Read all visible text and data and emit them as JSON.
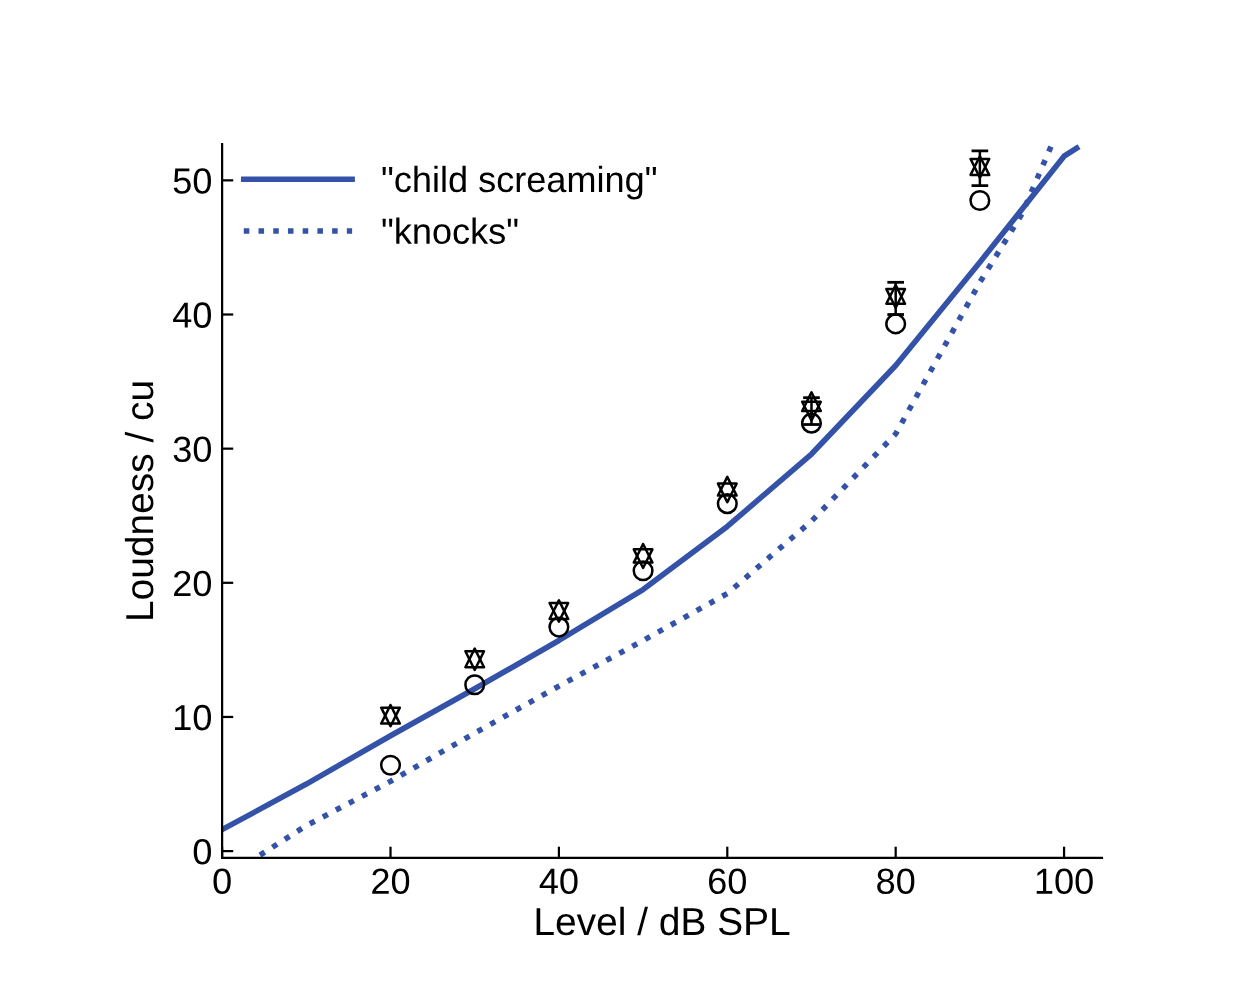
{
  "chart_data": {
    "type": "line",
    "xlabel": "Level / dB SPL",
    "ylabel": "Loudness / cu",
    "xlim": [
      0,
      104.5
    ],
    "ylim": [
      -0.5,
      52.7
    ],
    "xticks": [
      0,
      20,
      40,
      60,
      80,
      100
    ],
    "yticks": [
      0,
      10,
      20,
      30,
      40,
      50
    ],
    "grid": false,
    "legend": "top left",
    "series": [
      {
        "name": "\"child screaming\"",
        "color": "#3352a8",
        "line_style": "solid",
        "marker": "none",
        "x": [
          0,
          10,
          20,
          30,
          40,
          50,
          60,
          70,
          80,
          90,
          100,
          101.5
        ],
        "values": [
          1.6,
          5,
          8.6,
          12.1,
          15.7,
          19.5,
          24.2,
          29.6,
          36.2,
          43.9,
          51.8,
          52.4
        ]
      },
      {
        "name": "\"knocks\"",
        "color": "#3352a8",
        "line_style": "dotted",
        "marker": "none",
        "x": [
          4.5,
          10,
          20,
          30,
          40,
          50,
          60,
          70,
          80,
          90,
          95,
          98.5
        ],
        "values": [
          -0.3,
          1.9,
          5.2,
          8.8,
          12.3,
          15.7,
          19.2,
          24.6,
          31.1,
          42.4,
          47.5,
          52.6
        ]
      },
      {
        "type": "scatter",
        "color": "#000000",
        "marker": "circle",
        "x": [
          20,
          30,
          40,
          50,
          60,
          70,
          80,
          90
        ],
        "values": [
          6.4,
          12.4,
          16.7,
          20.9,
          25.9,
          31.9,
          39.3,
          48.5
        ]
      },
      {
        "type": "scatter",
        "color": "#000000",
        "marker": "triangle",
        "x": [
          20,
          30,
          40,
          50,
          60,
          70,
          80,
          90
        ],
        "values": [
          10.2,
          14.4,
          18.0,
          22.2,
          27.2,
          33.5,
          41.5,
          51.1
        ]
      },
      {
        "type": "scatter",
        "color": "#000000",
        "marker": "triangle_down",
        "x": [
          20,
          30,
          40,
          50,
          60,
          70,
          80,
          90
        ],
        "values": [
          10.0,
          14.2,
          17.8,
          21.8,
          26.7,
          32.8,
          41.2,
          50.9
        ],
        "errors": [
          null,
          null,
          null,
          null,
          null,
          1,
          1.2,
          1.3
        ]
      }
    ]
  }
}
